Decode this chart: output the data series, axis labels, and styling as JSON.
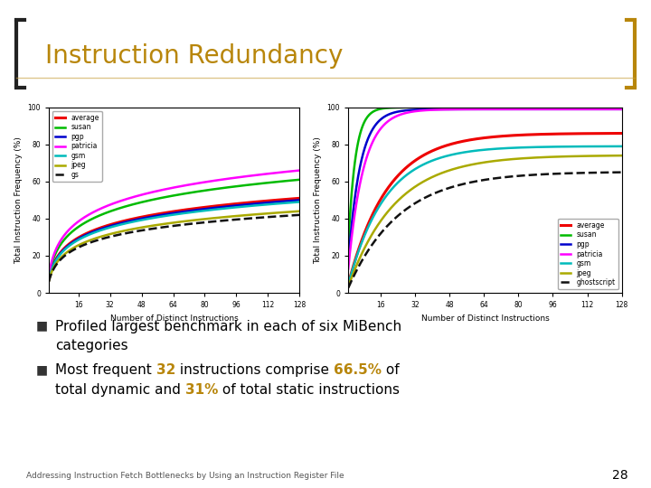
{
  "title": "Instruction Redundancy",
  "title_color": "#B8860B",
  "background_color": "#FFFFFF",
  "highlight_color": "#B8860B",
  "text_color": "#000000",
  "footer": "Addressing Instruction Fetch Bottlenecks by Using an Instruction Register File",
  "page_number": "28",
  "xlabel": "Number of Distinct Instructions",
  "ylabel": "Total Instruction Frequency (%)",
  "xticks": [
    16,
    32,
    48,
    64,
    80,
    96,
    112,
    128
  ],
  "yticks": [
    0,
    20,
    40,
    60,
    80,
    100
  ],
  "ylim": [
    0,
    100
  ],
  "xlim": [
    1,
    128
  ],
  "chart1": {
    "series": [
      {
        "name": "average",
        "color": "#EE0000",
        "lw": 2.2,
        "ls": "-",
        "end_val": 51,
        "k": 0.04
      },
      {
        "name": "susan",
        "color": "#00BB00",
        "lw": 1.8,
        "ls": "-",
        "end_val": 61,
        "k": 0.038
      },
      {
        "name": "pgp",
        "color": "#0000CC",
        "lw": 1.8,
        "ls": "-",
        "end_val": 50,
        "k": 0.039
      },
      {
        "name": "patricia",
        "color": "#FF00FF",
        "lw": 1.8,
        "ls": "-",
        "end_val": 66,
        "k": 0.036
      },
      {
        "name": "gsm",
        "color": "#00BBBB",
        "lw": 1.8,
        "ls": "-",
        "end_val": 49,
        "k": 0.04
      },
      {
        "name": "jpeg",
        "color": "#AAAA00",
        "lw": 1.8,
        "ls": "-",
        "end_val": 44,
        "k": 0.041
      },
      {
        "name": "gs",
        "color": "#111111",
        "lw": 1.8,
        "ls": "--",
        "end_val": 42,
        "k": 0.041
      }
    ]
  },
  "chart2": {
    "series": [
      {
        "name": "average",
        "color": "#EE0000",
        "lw": 2.2,
        "ls": "-",
        "end_val": 86,
        "k": 0.055
      },
      {
        "name": "susan",
        "color": "#00BB00",
        "lw": 1.8,
        "ls": "-",
        "end_val": 100,
        "k": 0.3
      },
      {
        "name": "pgp",
        "color": "#0000CC",
        "lw": 1.8,
        "ls": "-",
        "end_val": 99,
        "k": 0.18
      },
      {
        "name": "patricia",
        "color": "#FF00FF",
        "lw": 1.8,
        "ls": "-",
        "end_val": 99,
        "k": 0.14
      },
      {
        "name": "gsm",
        "color": "#00BBBB",
        "lw": 1.8,
        "ls": "-",
        "end_val": 79,
        "k": 0.058
      },
      {
        "name": "jpeg",
        "color": "#AAAA00",
        "lw": 1.8,
        "ls": "-",
        "end_val": 74,
        "k": 0.046
      },
      {
        "name": "ghostscript",
        "color": "#111111",
        "lw": 1.8,
        "ls": "--",
        "end_val": 65,
        "k": 0.042
      }
    ]
  }
}
